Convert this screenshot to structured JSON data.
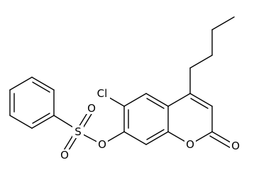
{
  "atoms": {
    "cl": "Cl",
    "ester_o": "O",
    "s": "S",
    "so_top": "O",
    "so_bottom": "O",
    "ring_o": "O",
    "carbonyl_o": "O"
  }
}
